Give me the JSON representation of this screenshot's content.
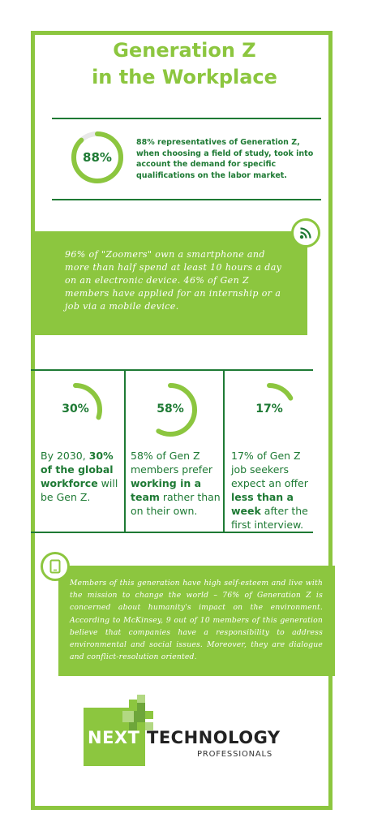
{
  "title": {
    "line1": "Generation Z",
    "line2": "in the Workplace"
  },
  "stat1": {
    "value": 88,
    "label": "88%",
    "text": "88% representatives of Generation Z, when choosing a field of study, took into account the demand for specific qualifications on the labor market."
  },
  "box1": {
    "icon": "rss-icon",
    "text": "96% of \"Zoomers\" own a smartphone and more than half spend at least 10 hours a day on an electronic device. 46% of Gen Z members have applied for an internship or a job via a mobile device."
  },
  "columns": [
    {
      "value": 30,
      "label": "30%",
      "t1": "By 2030, ",
      "b1": "30% of the global workforce",
      "t2": " will be Gen Z."
    },
    {
      "value": 58,
      "label": "58%",
      "t1": "58% of Gen Z members prefer ",
      "b1": "working in a team",
      "t2": " rather than on their own."
    },
    {
      "value": 17,
      "label": "17%",
      "t1": "17% of Gen Z job seekers expect an offer ",
      "b1": "less than a week",
      "t2": " after the first interview."
    }
  ],
  "box2": {
    "icon": "tablet-icon",
    "text": "Members of this generation have high self-esteem and live with the mission to change the world – 76% of Generation Z is concerned about humanity's impact on the environment. According to McKinsey, 9 out of 10 members of this generation believe that companies have a responsibility to address environmental and social issues. Moreover, they are dialogue and conflict-resolution oriented."
  },
  "logo": {
    "next": "NEXT",
    "technology": "TECHNOLOGY",
    "professionals": "PROFESSIONALS"
  },
  "colors": {
    "accent": "#8cc63f",
    "dark": "#1e7a34",
    "track": "#e8e8e8"
  }
}
